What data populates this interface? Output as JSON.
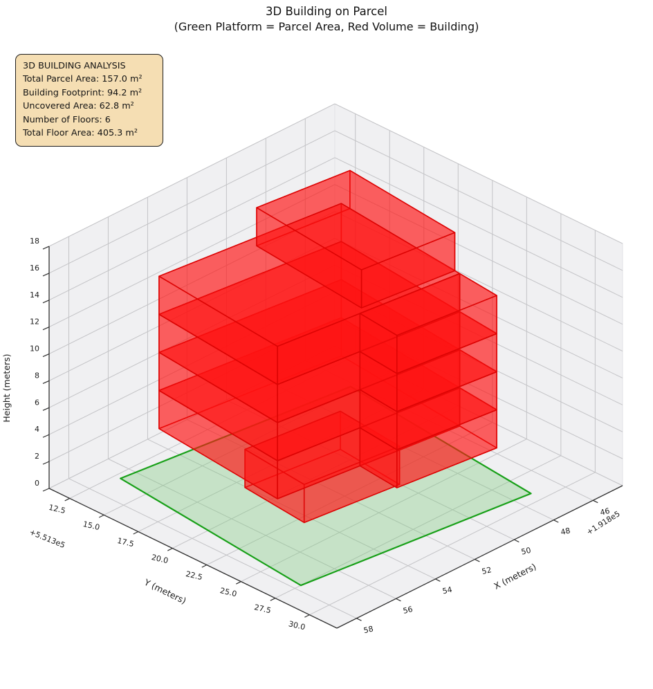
{
  "title": {
    "line1": "3D Building on Parcel",
    "line2": "(Green Platform = Parcel Area, Red Volume = Building)"
  },
  "info_box": {
    "title": "3D BUILDING ANALYSIS",
    "lines": [
      "Total Parcel Area: 157.0 m²",
      "Building Footprint: 94.2 m²",
      "Uncovered Area: 62.8 m²",
      "Number of Floors: 6",
      "Total Floor Area: 405.3 m²"
    ],
    "bg_color": "#f5deb3",
    "border_color": "#1c1c1c"
  },
  "chart_data": {
    "type": "3d-building-plot",
    "title": "3D Building on Parcel",
    "subtitle": "(Green Platform = Parcel Area, Red Volume = Building)",
    "stats": {
      "total_parcel_area_m2": 157.0,
      "building_footprint_m2": 94.2,
      "uncovered_area_m2": 62.8,
      "number_of_floors": 6,
      "total_floor_area_m2": 405.3
    },
    "axes": {
      "x": {
        "label": "X (meters)",
        "offset_text": "+1.918e5",
        "range": [
          44.5,
          59
        ],
        "tick_values": [
          46,
          48,
          50,
          52,
          54,
          56,
          58
        ],
        "tick_labels": [
          "46",
          "48",
          "50",
          "52",
          "54",
          "56",
          "58"
        ]
      },
      "y": {
        "label": "Y (meters)",
        "offset_text": "+5.513e5",
        "range": [
          11,
          32
        ],
        "tick_values": [
          12.5,
          15,
          17.5,
          20,
          22.5,
          25,
          27.5,
          30
        ],
        "tick_labels": [
          "12.5",
          "15.0",
          "17.5",
          "20.0",
          "22.5",
          "25.0",
          "27.5",
          "30.0"
        ]
      },
      "z": {
        "label": "Height (meters)",
        "range": [
          0,
          18
        ],
        "tick_values": [
          0,
          2,
          4,
          6,
          8,
          10,
          12,
          14,
          16,
          18
        ],
        "tick_labels": [
          "0",
          "2",
          "4",
          "6",
          "8",
          "10",
          "12",
          "14",
          "16",
          "18"
        ]
      },
      "grid": true,
      "pane_color": "#f0f0f2",
      "pane_edge_color": "#e2e2e6",
      "grid_color": "#c3c3c6",
      "spine_color": "#2e2e2e"
    },
    "parcel": {
      "area_m2": 157.0,
      "fill_color": "rgba(120,200,120,0.35)",
      "edge_color": "#18a018",
      "corners_xy": [
        [
          56.7,
          12.9
        ],
        [
          57.7,
          27.5
        ],
        [
          47.2,
          29.2
        ],
        [
          46.2,
          14.6
        ]
      ]
    },
    "building": {
      "footprint_m2": 94.2,
      "floors": 6,
      "floor_height_m": 2.8333,
      "total_height_m": 17.0,
      "fill_color": "rgba(255,20,20,0.42)",
      "edge_color": "#dc0404",
      "local_origin_xy": [
        46.2,
        14.6
      ],
      "local_axes": [
        [
          0.99,
          -0.16
        ],
        [
          0.068,
          0.998
        ]
      ],
      "blocks": [
        {
          "name": "ground-box",
          "s": [
            3.2,
            7.6
          ],
          "t": [
            4.8,
            9.6
          ],
          "z": [
            0,
            2.8333
          ],
          "split_floors": false
        },
        {
          "name": "main-block",
          "s": [
            0.6,
            9.0
          ],
          "t": [
            0.3,
            9.9
          ],
          "z": [
            2.8333,
            14.1667
          ],
          "split_floors": true
        },
        {
          "name": "right-wing",
          "s": [
            0.6,
            5.2
          ],
          "t": [
            9.9,
            12.9
          ],
          "z": [
            2.8333,
            14.1667
          ],
          "split_floors": true
        },
        {
          "name": "top-block",
          "s": [
            0.6,
            4.9
          ],
          "t": [
            1.0,
            9.5
          ],
          "z": [
            14.1667,
            17.0
          ],
          "split_floors": false
        }
      ]
    }
  }
}
